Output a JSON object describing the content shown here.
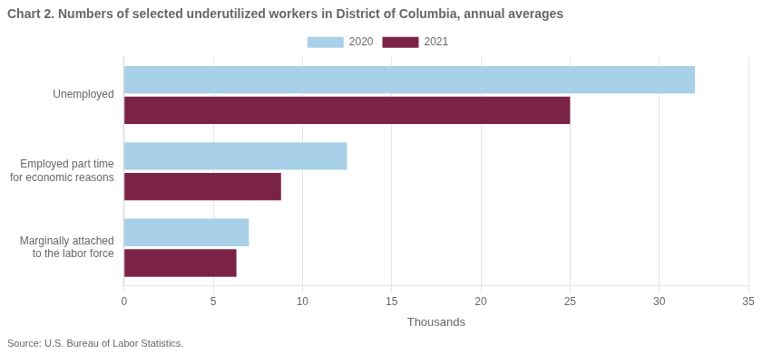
{
  "chart_data": {
    "type": "bar",
    "orientation": "horizontal",
    "title": "Chart 2. Numbers of selected underutilized workers in District of Columbia, annual averages",
    "annotations": [
      "Source: U.S. Bureau of Labor Statistics."
    ],
    "categories": [
      "Unemployed",
      "Employed part time\nfor economic reasons",
      "Marginally attached\nto the labor force"
    ],
    "series": [
      {
        "name": "2020",
        "color": "#a8d0e8",
        "values": [
          32,
          12.5,
          7
        ]
      },
      {
        "name": "2021",
        "color": "#7b2346",
        "values": [
          25,
          8.8,
          6.3
        ]
      }
    ],
    "xlabel": "Thousands",
    "xlim": [
      0,
      35
    ],
    "xticks": [
      0,
      5,
      10,
      15,
      20,
      25,
      30,
      35
    ],
    "grid": true,
    "legend": "top"
  }
}
